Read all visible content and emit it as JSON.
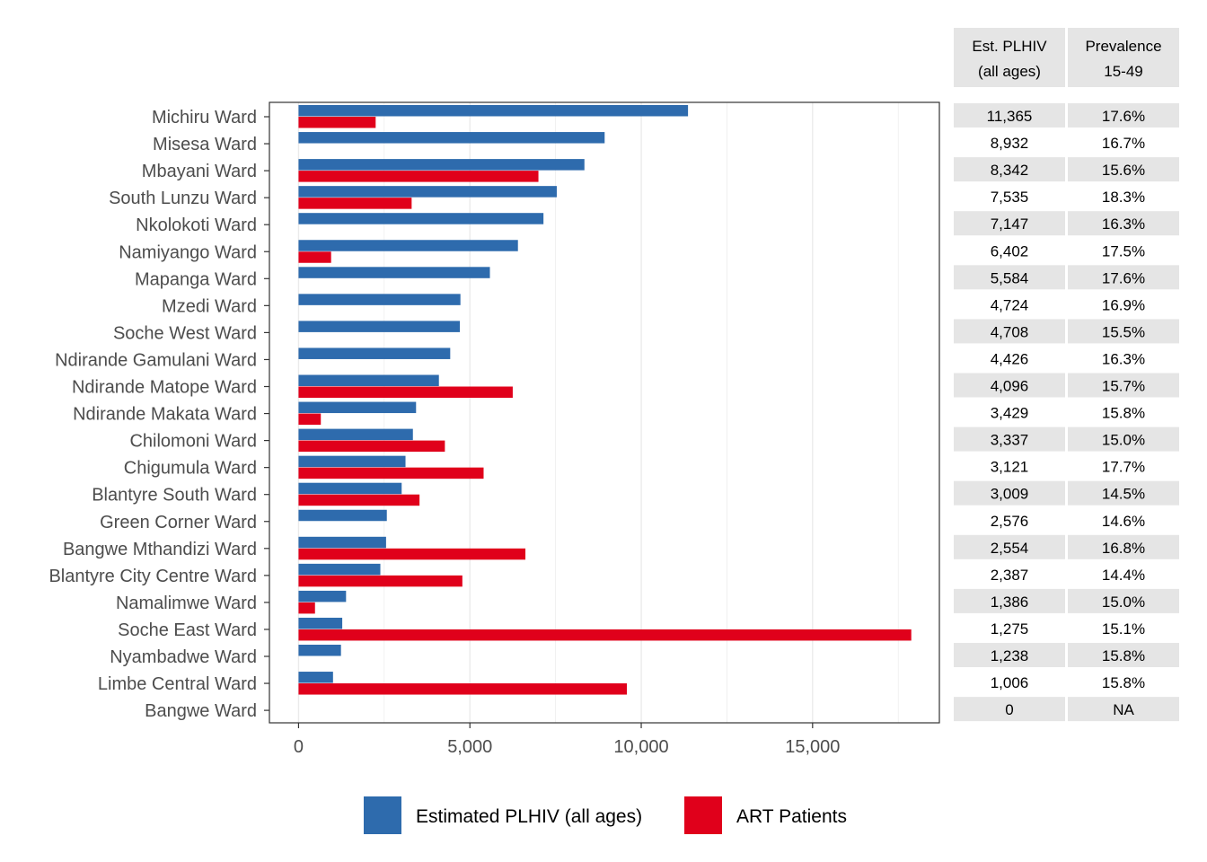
{
  "chart_data": {
    "type": "bar",
    "orientation": "horizontal",
    "categories": [
      "Michiru Ward",
      "Misesa Ward",
      "Mbayani Ward",
      "South Lunzu Ward",
      "Nkolokoti Ward",
      "Namiyango Ward",
      "Mapanga Ward",
      "Mzedi Ward",
      "Soche West Ward",
      "Ndirande Gamulani Ward",
      "Ndirande Matope Ward",
      "Ndirande Makata Ward",
      "Chilomoni Ward",
      "Chigumula Ward",
      "Blantyre South Ward",
      "Green Corner Ward",
      "Bangwe Mthandizi Ward",
      "Blantyre City Centre Ward",
      "Namalimwe Ward",
      "Soche East Ward",
      "Nyambadwe Ward",
      "Limbe Central Ward",
      "Bangwe Ward"
    ],
    "series": [
      {
        "name": "Estimated PLHIV (all ages)",
        "color": "#2E6BAD",
        "values": [
          11365,
          8932,
          8342,
          7535,
          7147,
          6402,
          5584,
          4724,
          4708,
          4426,
          4096,
          3429,
          3337,
          3121,
          3009,
          2576,
          2554,
          2387,
          1386,
          1275,
          1238,
          1006,
          0
        ]
      },
      {
        "name": "ART Patients",
        "color": "#E0001B",
        "values": [
          2250,
          0,
          7000,
          3300,
          0,
          950,
          0,
          0,
          0,
          0,
          6250,
          650,
          4270,
          5400,
          3530,
          0,
          6620,
          4780,
          480,
          17880,
          0,
          9580,
          0
        ]
      }
    ],
    "xlim": [
      -850,
      18700
    ],
    "xticks": [
      0,
      5000,
      10000,
      15000
    ],
    "xtick_labels": [
      "0",
      "5,000",
      "10,000",
      "15,000"
    ],
    "grid": true,
    "legend_position": "bottom",
    "title": "",
    "xlabel": "",
    "ylabel": ""
  },
  "table": {
    "headers": [
      [
        "Est. PLHIV",
        "(all ages)"
      ],
      [
        "Prevalence",
        "15-49"
      ]
    ],
    "rows": [
      [
        "11,365",
        "17.6%"
      ],
      [
        "8,932",
        "16.7%"
      ],
      [
        "8,342",
        "15.6%"
      ],
      [
        "7,535",
        "18.3%"
      ],
      [
        "7,147",
        "16.3%"
      ],
      [
        "6,402",
        "17.5%"
      ],
      [
        "5,584",
        "17.6%"
      ],
      [
        "4,724",
        "16.9%"
      ],
      [
        "4,708",
        "15.5%"
      ],
      [
        "4,426",
        "16.3%"
      ],
      [
        "4,096",
        "15.7%"
      ],
      [
        "3,429",
        "15.8%"
      ],
      [
        "3,337",
        "15.0%"
      ],
      [
        "3,121",
        "17.7%"
      ],
      [
        "3,009",
        "14.5%"
      ],
      [
        "2,576",
        "14.6%"
      ],
      [
        "2,554",
        "16.8%"
      ],
      [
        "2,387",
        "14.4%"
      ],
      [
        "1,386",
        "15.0%"
      ],
      [
        "1,275",
        "15.1%"
      ],
      [
        "1,238",
        "15.8%"
      ],
      [
        "1,006",
        "15.8%"
      ],
      [
        "0",
        "NA"
      ]
    ]
  },
  "colors": {
    "grid": "#EBEBEB",
    "panel_border": "#333333",
    "table_shade": "#E5E5E5"
  }
}
